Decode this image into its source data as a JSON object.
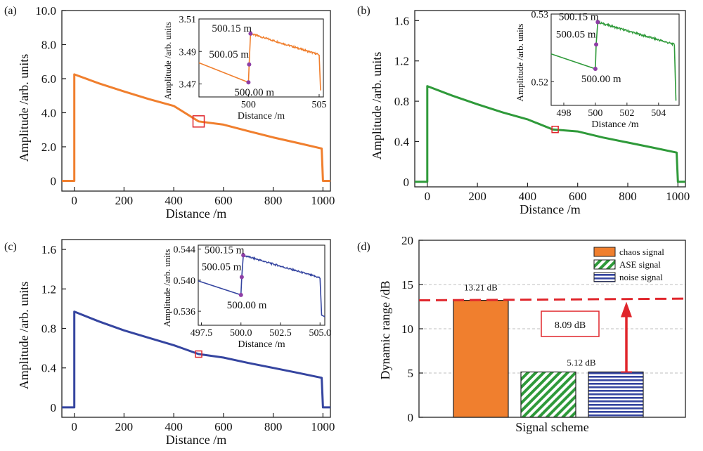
{
  "chart_data": [
    {
      "panel": "(a)",
      "type": "line",
      "color": "#f07f2e",
      "xlabel": "Distance /m",
      "ylabel": "Amplitude /arb. units",
      "xlim": [
        -50,
        1030
      ],
      "ylim": [
        -0.6,
        10.0
      ],
      "xticks": [
        "0",
        "200",
        "400",
        "600",
        "800",
        "1000"
      ],
      "yticks": [
        "0",
        "2.0",
        "4.0",
        "6.0",
        "8.0",
        "10.0"
      ],
      "points": [
        [
          -50,
          0
        ],
        [
          0,
          0
        ],
        [
          0,
          6.25
        ],
        [
          100,
          5.72
        ],
        [
          200,
          5.25
        ],
        [
          300,
          4.8
        ],
        [
          400,
          4.4
        ],
        [
          500,
          3.49
        ],
        [
          600,
          3.3
        ],
        [
          700,
          2.92
        ],
        [
          800,
          2.55
        ],
        [
          900,
          2.22
        ],
        [
          995,
          1.9
        ],
        [
          1000,
          0
        ],
        [
          1030,
          0
        ]
      ],
      "marker_box": [
        500,
        3.49
      ],
      "inset": {
        "ylabel": "Amplitude /arb. units",
        "xlabel": "Distance /m",
        "xlim": [
          496.5,
          505.3
        ],
        "ylim": [
          3.462,
          3.51
        ],
        "xticks": [
          "500",
          "505"
        ],
        "yticks": [
          "3.47",
          "3.49",
          "3.51"
        ],
        "pre": [
          [
            496.5,
            3.483
          ],
          [
            500.0,
            3.471
          ]
        ],
        "jump": [
          [
            500.0,
            3.471
          ],
          [
            500.05,
            3.482
          ],
          [
            500.15,
            3.501
          ]
        ],
        "decay_start": [
          500.15,
          3.501
        ],
        "decay_end": [
          505.0,
          3.488
        ],
        "tail": [
          [
            505.0,
            3.488
          ],
          [
            505.1,
            3.466
          ]
        ],
        "labels": [
          "500.15 m",
          "500.05 m",
          "500.00 m"
        ]
      }
    },
    {
      "panel": "(b)",
      "type": "line",
      "color": "#2f9a3a",
      "xlabel": "Distance /m",
      "ylabel": "Amplitude /arb. units",
      "xlim": [
        -50,
        1030
      ],
      "ylim": [
        -0.05,
        1.7
      ],
      "xticks": [
        "0",
        "200",
        "400",
        "600",
        "800",
        "1000"
      ],
      "yticks": [
        "0",
        "0.4",
        "0.8",
        "1.2",
        "1.6"
      ],
      "points": [
        [
          -50,
          0
        ],
        [
          0,
          0
        ],
        [
          0,
          0.95
        ],
        [
          100,
          0.855
        ],
        [
          200,
          0.77
        ],
        [
          300,
          0.69
        ],
        [
          400,
          0.62
        ],
        [
          500,
          0.52
        ],
        [
          600,
          0.5
        ],
        [
          700,
          0.44
        ],
        [
          800,
          0.39
        ],
        [
          900,
          0.34
        ],
        [
          995,
          0.29
        ],
        [
          1000,
          0
        ],
        [
          1030,
          0
        ]
      ],
      "marker_box": [
        510,
        0.52
      ],
      "inset": {
        "ylabel": "Amplitude /arb. units",
        "xlabel": "Distance /m",
        "xlim": [
          497.2,
          505.3
        ],
        "ylim": [
          0.5165,
          0.53
        ],
        "xticks": [
          "498",
          "500",
          "502",
          "504"
        ],
        "yticks": [
          "0.52",
          "0.53"
        ],
        "pre": [
          [
            497.2,
            0.5241
          ],
          [
            500.0,
            0.5219
          ]
        ],
        "jump": [
          [
            500.0,
            0.5219
          ],
          [
            500.05,
            0.5255
          ],
          [
            500.15,
            0.5288
          ]
        ],
        "decay_start": [
          500.15,
          0.5288
        ],
        "decay_end": [
          505.0,
          0.5255
        ],
        "tail": [
          [
            505.0,
            0.5255
          ],
          [
            505.1,
            0.5172
          ]
        ],
        "labels": [
          "500.15 m",
          "500.05 m",
          "500.00 m"
        ]
      }
    },
    {
      "panel": "(c)",
      "type": "line",
      "color": "#3545a0",
      "xlabel": "Distance /m",
      "ylabel": "Amplitude /arb. units",
      "xlim": [
        -50,
        1030
      ],
      "ylim": [
        -0.1,
        1.7
      ],
      "xticks": [
        "0",
        "200",
        "400",
        "600",
        "800",
        "1000"
      ],
      "yticks": [
        "0",
        "0.4",
        "0.8",
        "1.2",
        "1.6"
      ],
      "points": [
        [
          -50,
          0
        ],
        [
          0,
          0
        ],
        [
          0,
          0.97
        ],
        [
          100,
          0.87
        ],
        [
          200,
          0.78
        ],
        [
          300,
          0.705
        ],
        [
          400,
          0.63
        ],
        [
          500,
          0.54
        ],
        [
          600,
          0.505
        ],
        [
          700,
          0.45
        ],
        [
          800,
          0.4
        ],
        [
          900,
          0.35
        ],
        [
          995,
          0.3
        ],
        [
          1000,
          0
        ],
        [
          1030,
          0
        ]
      ],
      "marker_box": [
        500,
        0.54
      ],
      "inset": {
        "ylabel": "Amplitude /arb. units",
        "xlabel": "Distance /m",
        "xlim": [
          497.3,
          505.3
        ],
        "ylim": [
          0.5342,
          0.5445
        ],
        "xticks": [
          "497.5",
          "500.0",
          "502.5",
          "505.0"
        ],
        "yticks": [
          "0.536",
          "0.540",
          "0.544"
        ],
        "pre": [
          [
            497.3,
            0.5399
          ],
          [
            500.0,
            0.5381
          ]
        ],
        "jump": [
          [
            500.0,
            0.5381
          ],
          [
            500.05,
            0.5404
          ],
          [
            500.15,
            0.5432
          ]
        ],
        "decay_start": [
          500.15,
          0.5432
        ],
        "decay_end": [
          505.0,
          0.5403
        ],
        "tail": [
          [
            505.0,
            0.5403
          ],
          [
            505.1,
            0.5355
          ],
          [
            505.3,
            0.5353
          ]
        ],
        "labels": [
          "500.15 m",
          "500.05 m",
          "500.00 m"
        ]
      }
    },
    {
      "panel": "(d)",
      "type": "bar",
      "xlabel": "Signal scheme",
      "ylabel": "Dynamic range /dB",
      "ylim": [
        0,
        20
      ],
      "yticks": [
        "0",
        "5",
        "10",
        "15",
        "20"
      ],
      "grid": true,
      "series": [
        {
          "name": "chaos signal",
          "value": 13.21,
          "color": "#f07f2e",
          "fill": "solid"
        },
        {
          "name": "ASE signal",
          "value": 5.12,
          "color": "#2f9a3a",
          "fill": "diagonal-hatch"
        },
        {
          "name": "noise signal",
          "value": 5.12,
          "color": "#3545a0",
          "fill": "horizontal-stripes"
        }
      ],
      "labels": {
        "chaos": "13.21 dB",
        "noise": "5.12 dB",
        "difference": "8.09 dB"
      },
      "reference_line": {
        "value": 13.21,
        "color": "#e0262c",
        "style": "dashed"
      },
      "arrow": {
        "from": 5.12,
        "to": 13.21,
        "color": "#e0262c"
      },
      "legend_position": "top-right"
    }
  ]
}
